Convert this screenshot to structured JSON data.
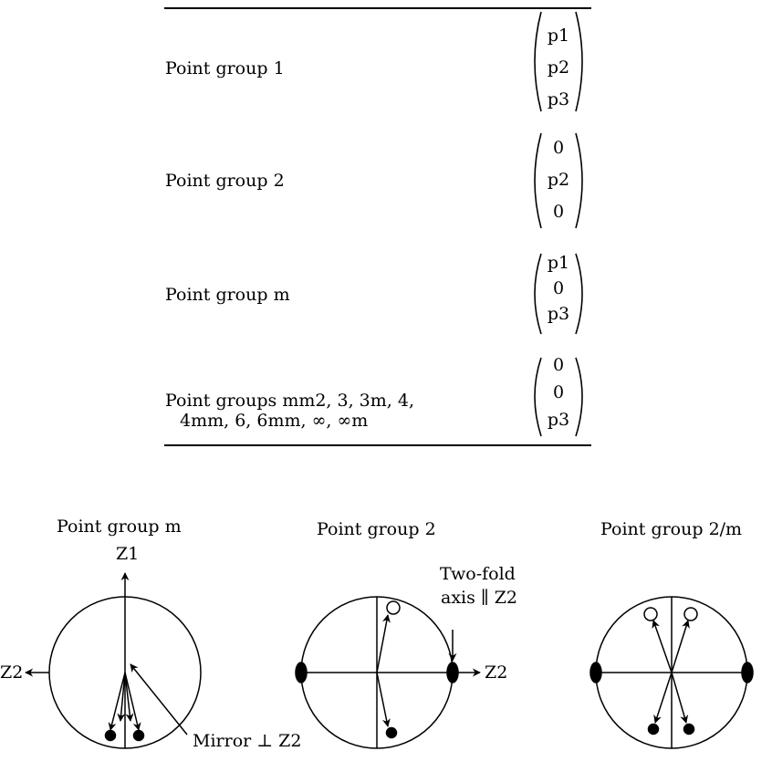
{
  "table": {
    "rows": [
      {
        "label": "Point group 1",
        "vector": [
          "p1",
          "p2",
          "p3"
        ]
      },
      {
        "label": "Point group 2",
        "vector": [
          "0",
          "p2",
          "0"
        ]
      },
      {
        "label": "Point group m",
        "vector": [
          "p1",
          "0",
          "p3"
        ]
      },
      {
        "label": "Point groups mm2, 3, 3m, 4,",
        "label_line2": "4mm, 6, 6mm, ∞, ∞m",
        "vector": [
          "0",
          "0",
          "p3"
        ]
      }
    ]
  },
  "figures": [
    {
      "title": "Point group m",
      "axis_top": "Z1",
      "axis_left": "Z2",
      "note": "Mirror ⊥ Z2"
    },
    {
      "title": "Point group 2",
      "note_line1": "Two-fold",
      "note_line2": "axis ∥ Z2",
      "axis_right": "Z2"
    },
    {
      "title": "Point group 2/m"
    }
  ]
}
